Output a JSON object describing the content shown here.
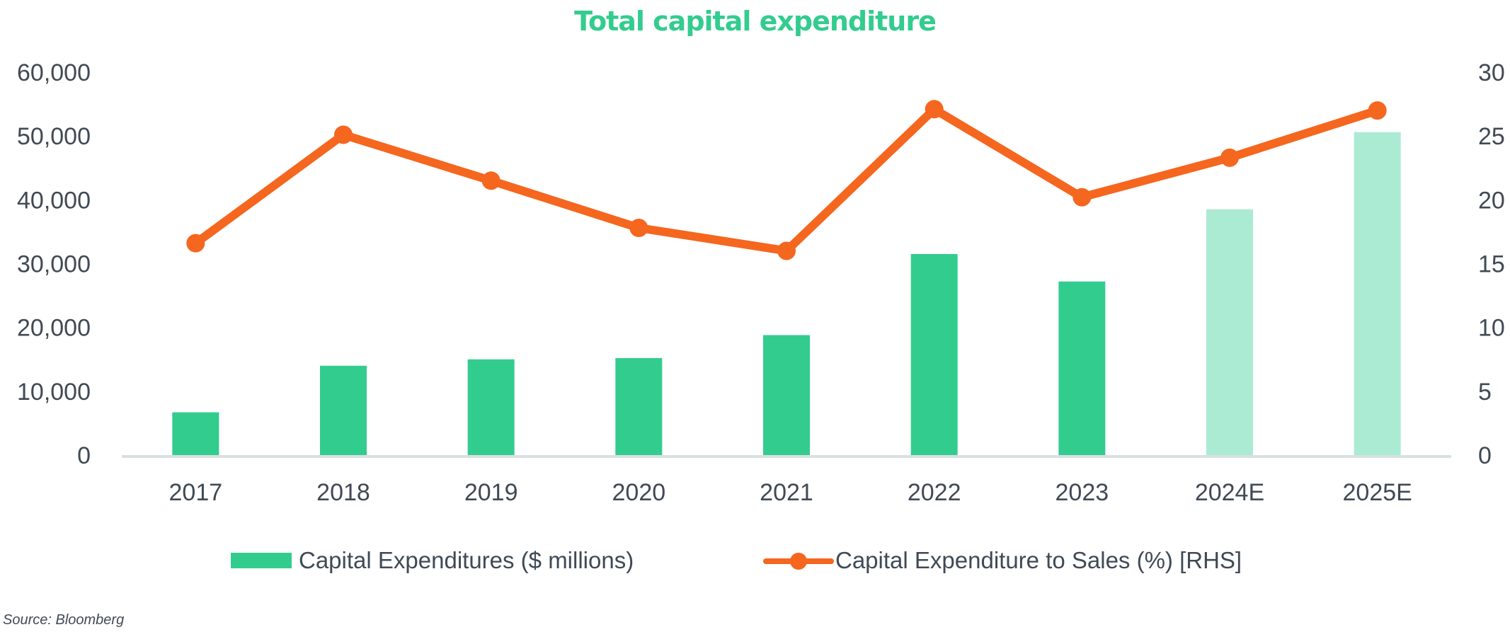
{
  "chart_data": {
    "type": "bar",
    "title": "Total capital expenditure",
    "categories": [
      "2017",
      "2018",
      "2019",
      "2020",
      "2021",
      "2022",
      "2023",
      "2024E",
      "2025E"
    ],
    "series": [
      {
        "name": "Capital Expenditures ($ millions)",
        "type": "bar",
        "axis": "left",
        "values": [
          6700,
          14000,
          15000,
          15200,
          18800,
          31500,
          27200,
          38500,
          50600
        ],
        "colors": [
          "#33cc8f",
          "#33cc8f",
          "#33cc8f",
          "#33cc8f",
          "#33cc8f",
          "#33cc8f",
          "#33cc8f",
          "#abead3",
          "#abead3"
        ]
      },
      {
        "name": "Capital Expenditure to Sales (%) [RHS]",
        "type": "line",
        "axis": "right",
        "values": [
          16.6,
          25.1,
          21.5,
          17.8,
          16.0,
          27.1,
          20.2,
          23.3,
          27.0
        ],
        "color": "#f5661f"
      }
    ],
    "y_left": {
      "range": [
        0,
        60000
      ],
      "ticks": [
        "0",
        "10,000",
        "20,000",
        "30,000",
        "40,000",
        "50,000",
        "60,000"
      ]
    },
    "y_right": {
      "range": [
        0,
        30
      ],
      "ticks": [
        "0",
        "5",
        "10",
        "15",
        "20",
        "25",
        "30"
      ]
    },
    "grid": false,
    "legend_position": "bottom"
  },
  "source": "Source: Bloomberg",
  "colors": {
    "accent": "#33cc8f",
    "line": "#f5661f",
    "axis": "#d9e0e0",
    "text": "#404a55"
  }
}
